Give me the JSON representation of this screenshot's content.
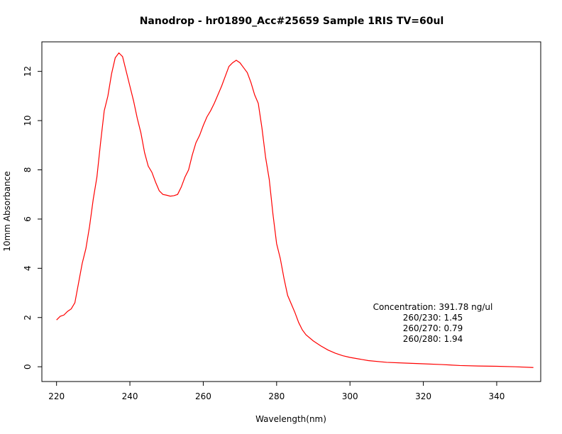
{
  "chart_data": {
    "type": "line",
    "title": "Nanodrop - hr01890_Acc#25659 Sample 1RIS  TV=60ul",
    "xlabel": "Wavelength(nm)",
    "ylabel": "10mm Absorbance",
    "xlim": [
      216,
      352
    ],
    "ylim": [
      -0.6,
      13.2
    ],
    "xticks": [
      220,
      240,
      260,
      280,
      300,
      320,
      340
    ],
    "yticks": [
      0,
      2,
      4,
      6,
      8,
      10,
      12
    ],
    "grid": false,
    "series_color": "#ff0000",
    "series": [
      {
        "x": [
          220,
          221,
          222,
          223,
          224,
          225,
          226,
          227,
          228,
          229,
          230,
          231,
          232,
          233,
          234,
          235,
          236,
          237,
          238,
          239,
          240,
          241,
          242,
          243,
          244,
          245,
          246,
          247,
          248,
          249,
          250,
          251,
          252,
          253,
          254,
          255,
          256,
          257,
          258,
          259,
          260,
          261,
          262,
          263,
          264,
          265,
          266,
          267,
          268,
          269,
          270,
          271,
          272,
          273,
          274,
          275,
          276,
          277,
          278,
          279,
          280,
          281,
          282,
          283,
          284,
          285,
          286,
          287,
          288,
          290,
          292,
          294,
          296,
          298,
          300,
          305,
          310,
          315,
          320,
          325,
          330,
          335,
          340,
          345,
          350
        ],
        "y": [
          1.9,
          2.05,
          2.1,
          2.25,
          2.35,
          2.6,
          3.4,
          4.2,
          4.8,
          5.7,
          6.8,
          7.7,
          9.1,
          10.4,
          11.0,
          11.9,
          12.55,
          12.75,
          12.6,
          12.0,
          11.4,
          10.8,
          10.1,
          9.5,
          8.7,
          8.15,
          7.9,
          7.5,
          7.15,
          7.0,
          6.97,
          6.93,
          6.95,
          7.0,
          7.3,
          7.7,
          8.0,
          8.6,
          9.1,
          9.4,
          9.8,
          10.15,
          10.4,
          10.7,
          11.05,
          11.4,
          11.8,
          12.2,
          12.35,
          12.45,
          12.35,
          12.15,
          11.95,
          11.55,
          11.05,
          10.7,
          9.7,
          8.5,
          7.6,
          6.2,
          5.0,
          4.4,
          3.6,
          2.9,
          2.55,
          2.2,
          1.8,
          1.5,
          1.3,
          1.05,
          0.85,
          0.68,
          0.55,
          0.45,
          0.38,
          0.25,
          0.18,
          0.15,
          0.12,
          0.09,
          0.05,
          0.03,
          0.02,
          0.0,
          -0.03
        ]
      }
    ],
    "annotations": [
      "Concentration: 391.78 ng/ul",
      "260/230: 1.45",
      "260/270: 0.79",
      "260/280: 1.94"
    ]
  }
}
